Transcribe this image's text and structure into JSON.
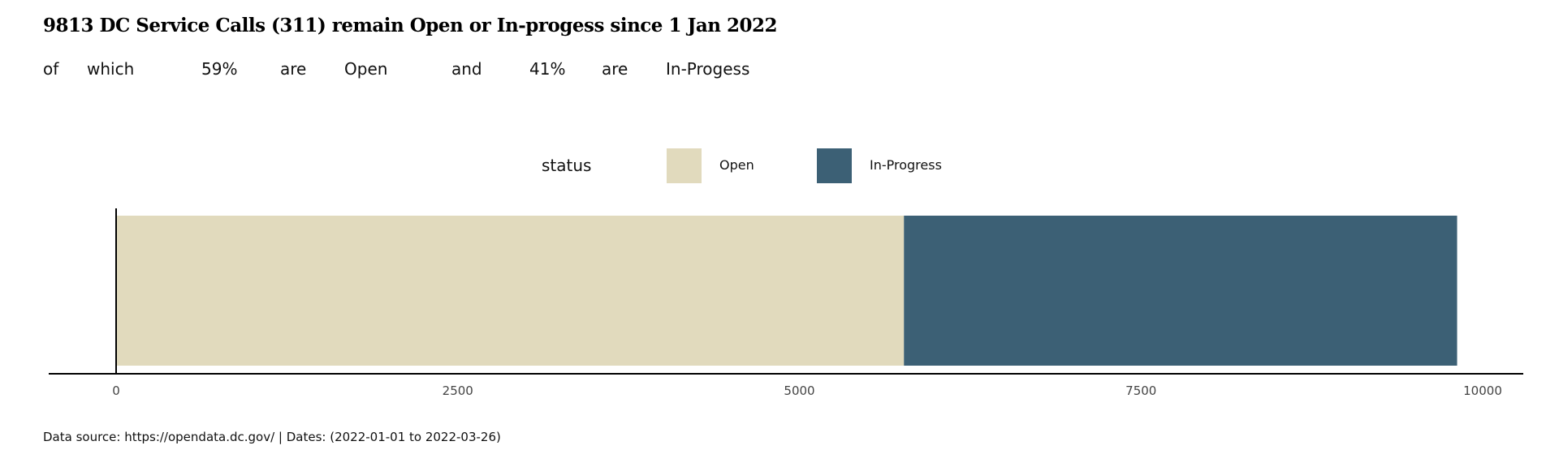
{
  "chart_data": {
    "type": "bar",
    "orientation": "horizontal",
    "stacked": true,
    "title": "9813 DC Service Calls (311) remain Open or In-progess since 1  Jan 2022",
    "subtitle_words": [
      "of",
      "which",
      "59%",
      "are",
      "Open",
      "and",
      "41%",
      "are",
      "In-Progess"
    ],
    "categories": [
      ""
    ],
    "series": [
      {
        "name": "Open",
        "values": [
          5765
        ],
        "color": "#E1DABD"
      },
      {
        "name": "In-Progress",
        "values": [
          4048
        ],
        "color": "#3C6075"
      }
    ],
    "xlim": [
      0,
      10000
    ],
    "x_ticks": [
      0,
      2500,
      5000,
      7500,
      10000
    ],
    "x_tick_labels": [
      "0",
      "2500",
      "5000",
      "7500",
      "10000"
    ],
    "xlabel": "",
    "ylabel": "",
    "grid": false,
    "legend": {
      "title": "status",
      "placement": "top-center",
      "entries": [
        {
          "label": "Open",
          "color": "#E1DABD"
        },
        {
          "label": "In-Progress",
          "color": "#3C6075"
        }
      ]
    },
    "source_note": "Data source: https://opendata.dc.gov/ | Dates: (2022-01-01 to 2022-03-26)"
  }
}
